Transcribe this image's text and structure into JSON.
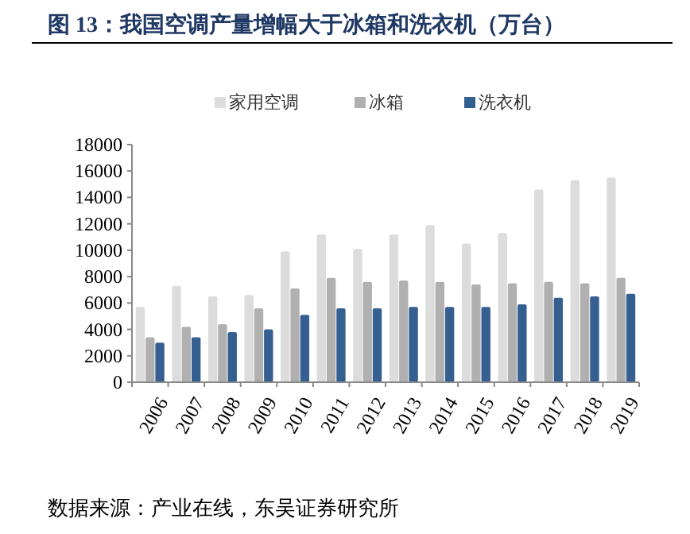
{
  "chart_data": {
    "type": "bar",
    "title": "图 13：我国空调产量增幅大于冰箱和洗衣机（万台）",
    "categories": [
      "2006",
      "2007",
      "2008",
      "2009",
      "2010",
      "2011",
      "2012",
      "2013",
      "2014",
      "2015",
      "2016",
      "2017",
      "2018",
      "2019"
    ],
    "series": [
      {
        "name": "家用空调",
        "color": "#dcdcdc",
        "values": [
          5700,
          7300,
          6500,
          6600,
          9900,
          11200,
          10100,
          11200,
          11900,
          10500,
          11300,
          14600,
          15300,
          15500
        ]
      },
      {
        "name": "冰箱",
        "color": "#b0b0b0",
        "values": [
          3400,
          4200,
          4400,
          5600,
          7100,
          7900,
          7600,
          7700,
          7600,
          7400,
          7500,
          7600,
          7500,
          7900
        ]
      },
      {
        "name": "洗衣机",
        "color": "#365f91",
        "values": [
          3000,
          3400,
          3800,
          4000,
          5100,
          5600,
          5600,
          5700,
          5700,
          5700,
          5900,
          6400,
          6500,
          6700
        ]
      }
    ],
    "ylim": [
      0,
      18000
    ],
    "yticks": [
      0,
      2000,
      4000,
      6000,
      8000,
      10000,
      12000,
      14000,
      16000,
      18000
    ],
    "legend": "top",
    "grid": false,
    "annotations": [
      "数据来源：产业在线，东吴证券研究所"
    ]
  }
}
